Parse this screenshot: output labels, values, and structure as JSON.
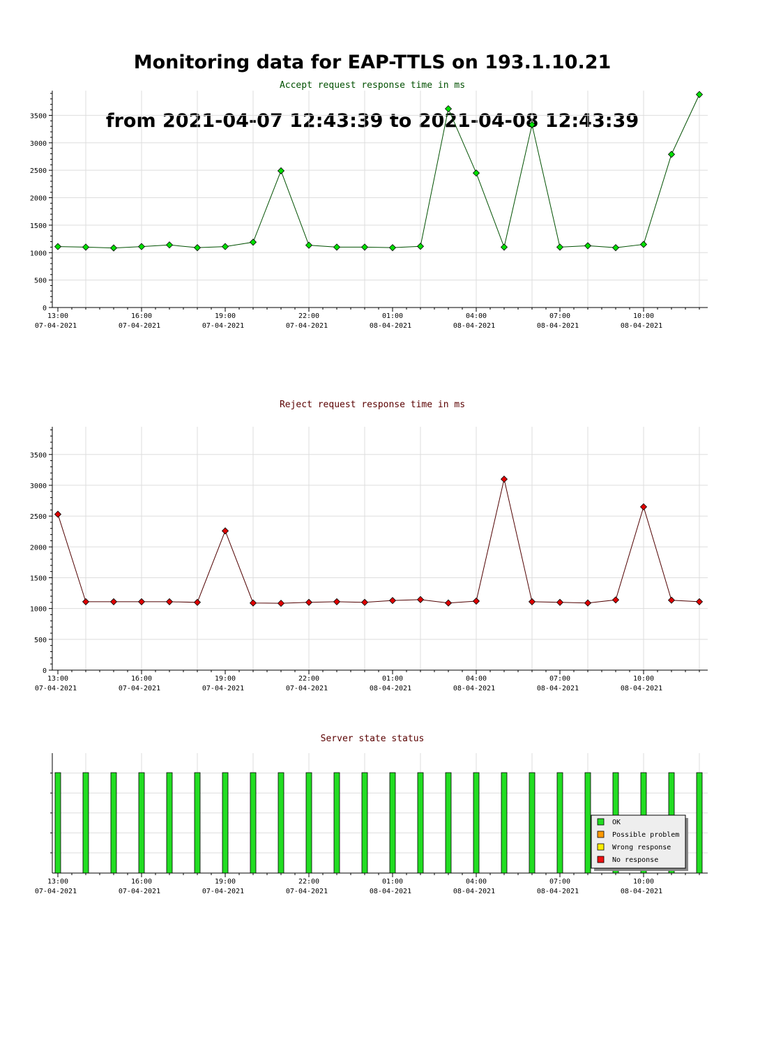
{
  "page": {
    "title_line1": "Monitoring data for EAP-TTLS on 193.1.10.21",
    "title_line2": "from 2021-04-07 12:43:39 to 2021-04-08 12:43:39"
  },
  "x_axis": {
    "labels": [
      {
        "time": "13:00",
        "date": "07-04-2021"
      },
      {
        "time": "16:00",
        "date": "07-04-2021"
      },
      {
        "time": "19:00",
        "date": "07-04-2021"
      },
      {
        "time": "22:00",
        "date": "07-04-2021"
      },
      {
        "time": "01:00",
        "date": "08-04-2021"
      },
      {
        "time": "04:00",
        "date": "08-04-2021"
      },
      {
        "time": "07:00",
        "date": "08-04-2021"
      },
      {
        "time": "10:00",
        "date": "08-04-2021"
      }
    ]
  },
  "colors": {
    "accept_line": "#005000",
    "accept_marker": "#00e000",
    "reject_line": "#500000",
    "reject_marker": "#e00000",
    "ok": "#22dd22",
    "possible_problem": "#ff9900",
    "wrong_response": "#ffee00",
    "no_response": "#ee1111"
  },
  "chart_data": [
    {
      "type": "line",
      "title": "Accept request response time in ms",
      "xlabel": "",
      "ylabel": "",
      "ylim": [
        0,
        3950
      ],
      "yticks": [
        0,
        500,
        1000,
        1500,
        2000,
        2500,
        3000,
        3500
      ],
      "xlim": [
        "2021-04-07 12:48",
        "2021-04-08 12:18"
      ],
      "series": [
        {
          "x": [
            "2021-04-07 13:00",
            "2021-04-07 14:00",
            "2021-04-07 15:00",
            "2021-04-07 16:00",
            "2021-04-07 17:00",
            "2021-04-07 18:00",
            "2021-04-07 19:00",
            "2021-04-07 20:00",
            "2021-04-07 21:00",
            "2021-04-07 22:00",
            "2021-04-07 23:00",
            "2021-04-08 00:00",
            "2021-04-08 01:00",
            "2021-04-08 02:00",
            "2021-04-08 03:00",
            "2021-04-08 04:00",
            "2021-04-08 05:00",
            "2021-04-08 06:00",
            "2021-04-08 07:00",
            "2021-04-08 08:00",
            "2021-04-08 09:00",
            "2021-04-08 10:00",
            "2021-04-08 11:00",
            "2021-04-08 12:00"
          ],
          "values": [
            1110,
            1100,
            1085,
            1110,
            1140,
            1090,
            1110,
            1190,
            2490,
            1135,
            1100,
            1100,
            1090,
            1115,
            3620,
            2450,
            1100,
            3330,
            1100,
            1125,
            1090,
            1150,
            2790,
            3880
          ]
        }
      ]
    },
    {
      "type": "line",
      "title": "Reject request response time in ms",
      "xlabel": "",
      "ylabel": "",
      "ylim": [
        0,
        3950
      ],
      "yticks": [
        0,
        500,
        1000,
        1500,
        2000,
        2500,
        3000,
        3500
      ],
      "xlim": [
        "2021-04-07 12:48",
        "2021-04-08 12:18"
      ],
      "series": [
        {
          "x": [
            "2021-04-07 13:00",
            "2021-04-07 14:00",
            "2021-04-07 15:00",
            "2021-04-07 16:00",
            "2021-04-07 17:00",
            "2021-04-07 18:00",
            "2021-04-07 19:00",
            "2021-04-07 20:00",
            "2021-04-07 21:00",
            "2021-04-07 22:00",
            "2021-04-07 23:00",
            "2021-04-08 00:00",
            "2021-04-08 01:00",
            "2021-04-08 02:00",
            "2021-04-08 03:00",
            "2021-04-08 04:00",
            "2021-04-08 05:00",
            "2021-04-08 06:00",
            "2021-04-08 07:00",
            "2021-04-08 08:00",
            "2021-04-08 09:00",
            "2021-04-08 10:00",
            "2021-04-08 11:00",
            "2021-04-08 12:00"
          ],
          "values": [
            2530,
            1110,
            1110,
            1110,
            1110,
            1100,
            2260,
            1090,
            1085,
            1100,
            1110,
            1100,
            1130,
            1145,
            1090,
            1120,
            3100,
            1110,
            1100,
            1090,
            1140,
            2650,
            1135,
            1110
          ]
        }
      ]
    },
    {
      "type": "bar",
      "title": "Server state status",
      "xlim": [
        "2021-04-07 12:48",
        "2021-04-08 12:18"
      ],
      "x": [
        "2021-04-07 13:00",
        "2021-04-07 14:00",
        "2021-04-07 15:00",
        "2021-04-07 16:00",
        "2021-04-07 17:00",
        "2021-04-07 18:00",
        "2021-04-07 19:00",
        "2021-04-07 20:00",
        "2021-04-07 21:00",
        "2021-04-07 22:00",
        "2021-04-07 23:00",
        "2021-04-08 00:00",
        "2021-04-08 01:00",
        "2021-04-08 02:00",
        "2021-04-08 03:00",
        "2021-04-08 04:00",
        "2021-04-08 05:00",
        "2021-04-08 06:00",
        "2021-04-08 07:00",
        "2021-04-08 08:00",
        "2021-04-08 09:00",
        "2021-04-08 10:00",
        "2021-04-08 11:00",
        "2021-04-08 12:00"
      ],
      "states": [
        "OK",
        "OK",
        "OK",
        "OK",
        "OK",
        "OK",
        "OK",
        "OK",
        "OK",
        "OK",
        "OK",
        "OK",
        "OK",
        "OK",
        "OK",
        "OK",
        "OK",
        "OK",
        "OK",
        "OK",
        "OK",
        "OK",
        "OK",
        "OK"
      ],
      "legend": [
        "OK",
        "Possible problem",
        "Wrong response",
        "No response"
      ],
      "legend_position": "bottom-right"
    }
  ]
}
